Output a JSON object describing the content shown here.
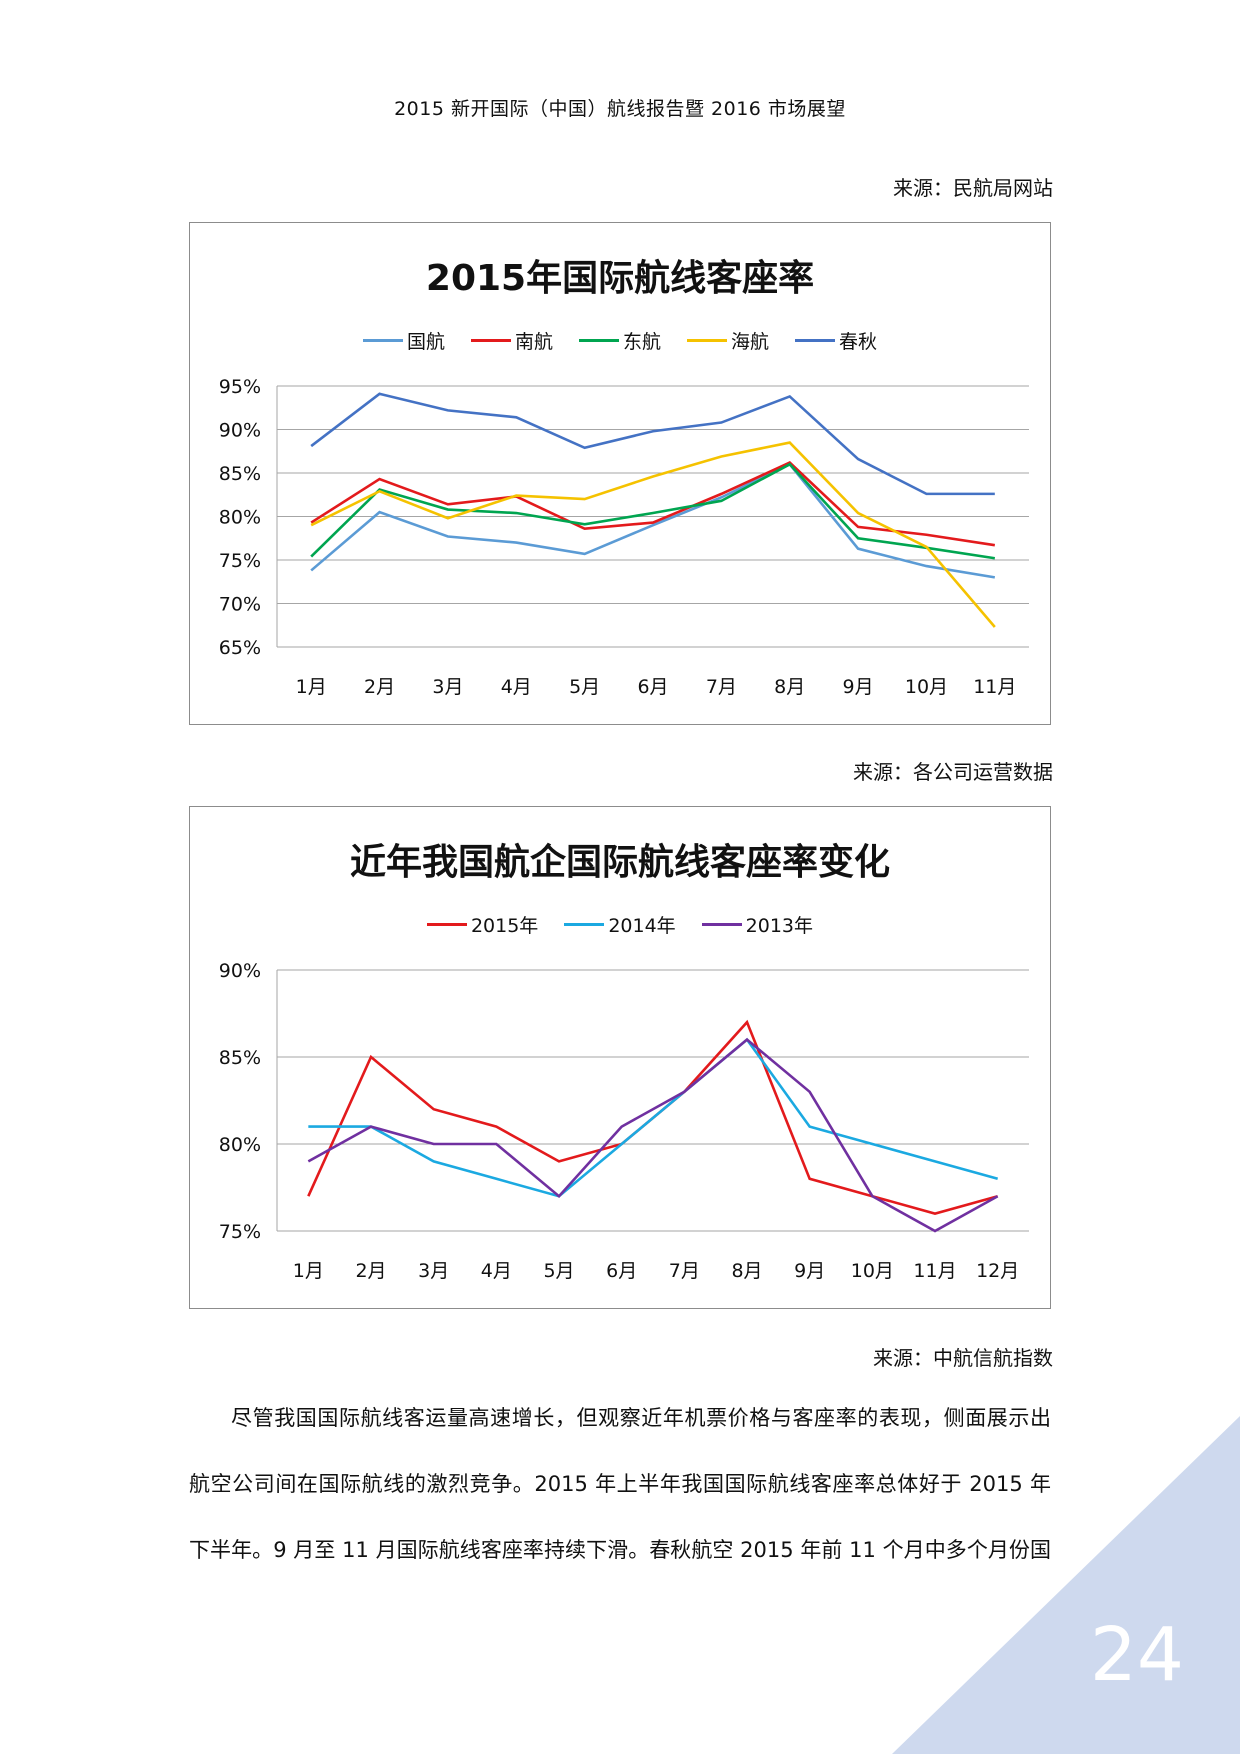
{
  "header": {
    "title": "2015 新开国际（中国）航线报告暨 2016 市场展望"
  },
  "sources": [
    "来源：民航局网站",
    "来源：各公司运营数据",
    "来源：中航信航指数"
  ],
  "chart_data": [
    {
      "type": "line",
      "title": "2015年国际航线客座率",
      "categories": [
        "1月",
        "2月",
        "3月",
        "4月",
        "5月",
        "6月",
        "7月",
        "8月",
        "9月",
        "10月",
        "11月"
      ],
      "y_ticks": [
        "65%",
        "70%",
        "75%",
        "80%",
        "85%",
        "90%",
        "95%"
      ],
      "ylim": [
        65,
        95
      ],
      "grid": true,
      "legend_position": "top",
      "series": [
        {
          "name": "国航",
          "color": "#5b9bd5",
          "values": [
            73.8,
            80.5,
            77.7,
            77.0,
            75.7,
            79.0,
            82.2,
            86.0,
            76.3,
            74.3,
            73.0
          ]
        },
        {
          "name": "南航",
          "color": "#e31a1c",
          "values": [
            79.3,
            84.3,
            81.4,
            82.3,
            78.6,
            79.3,
            82.6,
            86.2,
            78.8,
            77.9,
            76.7
          ]
        },
        {
          "name": "东航",
          "color": "#00a550",
          "values": [
            75.4,
            83.1,
            80.8,
            80.4,
            79.1,
            80.4,
            81.8,
            86.0,
            77.5,
            76.4,
            75.2
          ]
        },
        {
          "name": "海航",
          "color": "#f5c200",
          "values": [
            79.0,
            82.9,
            79.8,
            82.4,
            82.0,
            84.6,
            86.9,
            88.5,
            80.4,
            76.5,
            67.3
          ]
        },
        {
          "name": "春秋",
          "color": "#4472c4",
          "values": [
            88.1,
            94.1,
            92.2,
            91.4,
            87.9,
            89.8,
            90.8,
            93.8,
            86.6,
            82.6,
            82.6
          ]
        }
      ]
    },
    {
      "type": "line",
      "title": "近年我国航企国际航线客座率变化",
      "categories": [
        "1月",
        "2月",
        "3月",
        "4月",
        "5月",
        "6月",
        "7月",
        "8月",
        "9月",
        "10月",
        "11月",
        "12月"
      ],
      "y_ticks": [
        "75%",
        "80%",
        "85%",
        "90%"
      ],
      "ylim": [
        75,
        90
      ],
      "grid": true,
      "legend_position": "top",
      "series": [
        {
          "name": "2015年",
          "color": "#e31a1c",
          "values": [
            77,
            85,
            82,
            81,
            79,
            80,
            83,
            87,
            78,
            77,
            76,
            77
          ]
        },
        {
          "name": "2014年",
          "color": "#1ba9e1",
          "values": [
            81,
            81,
            79,
            78,
            77,
            80,
            83,
            86,
            81,
            80,
            79,
            78
          ]
        },
        {
          "name": "2013年",
          "color": "#7030a0",
          "values": [
            79,
            81,
            80,
            80,
            77,
            81,
            83,
            86,
            83,
            77,
            75,
            77
          ]
        }
      ]
    }
  ],
  "paragraph": [
    "尽管我国国际航线客运量高速增长，但观察近年机票价格与客座率的表现，侧面展示出",
    "航空公司间在国际航线的激烈竞争。2015 年上半年我国国际航线客座率总体好于 2015 年",
    "下半年。9 月至 11 月国际航线客座率持续下滑。春秋航空 2015 年前 11 个月中多个月份国"
  ],
  "page_number": "24",
  "colors": {
    "corner": "#ced9ee",
    "grid": "#a6a6a6"
  }
}
